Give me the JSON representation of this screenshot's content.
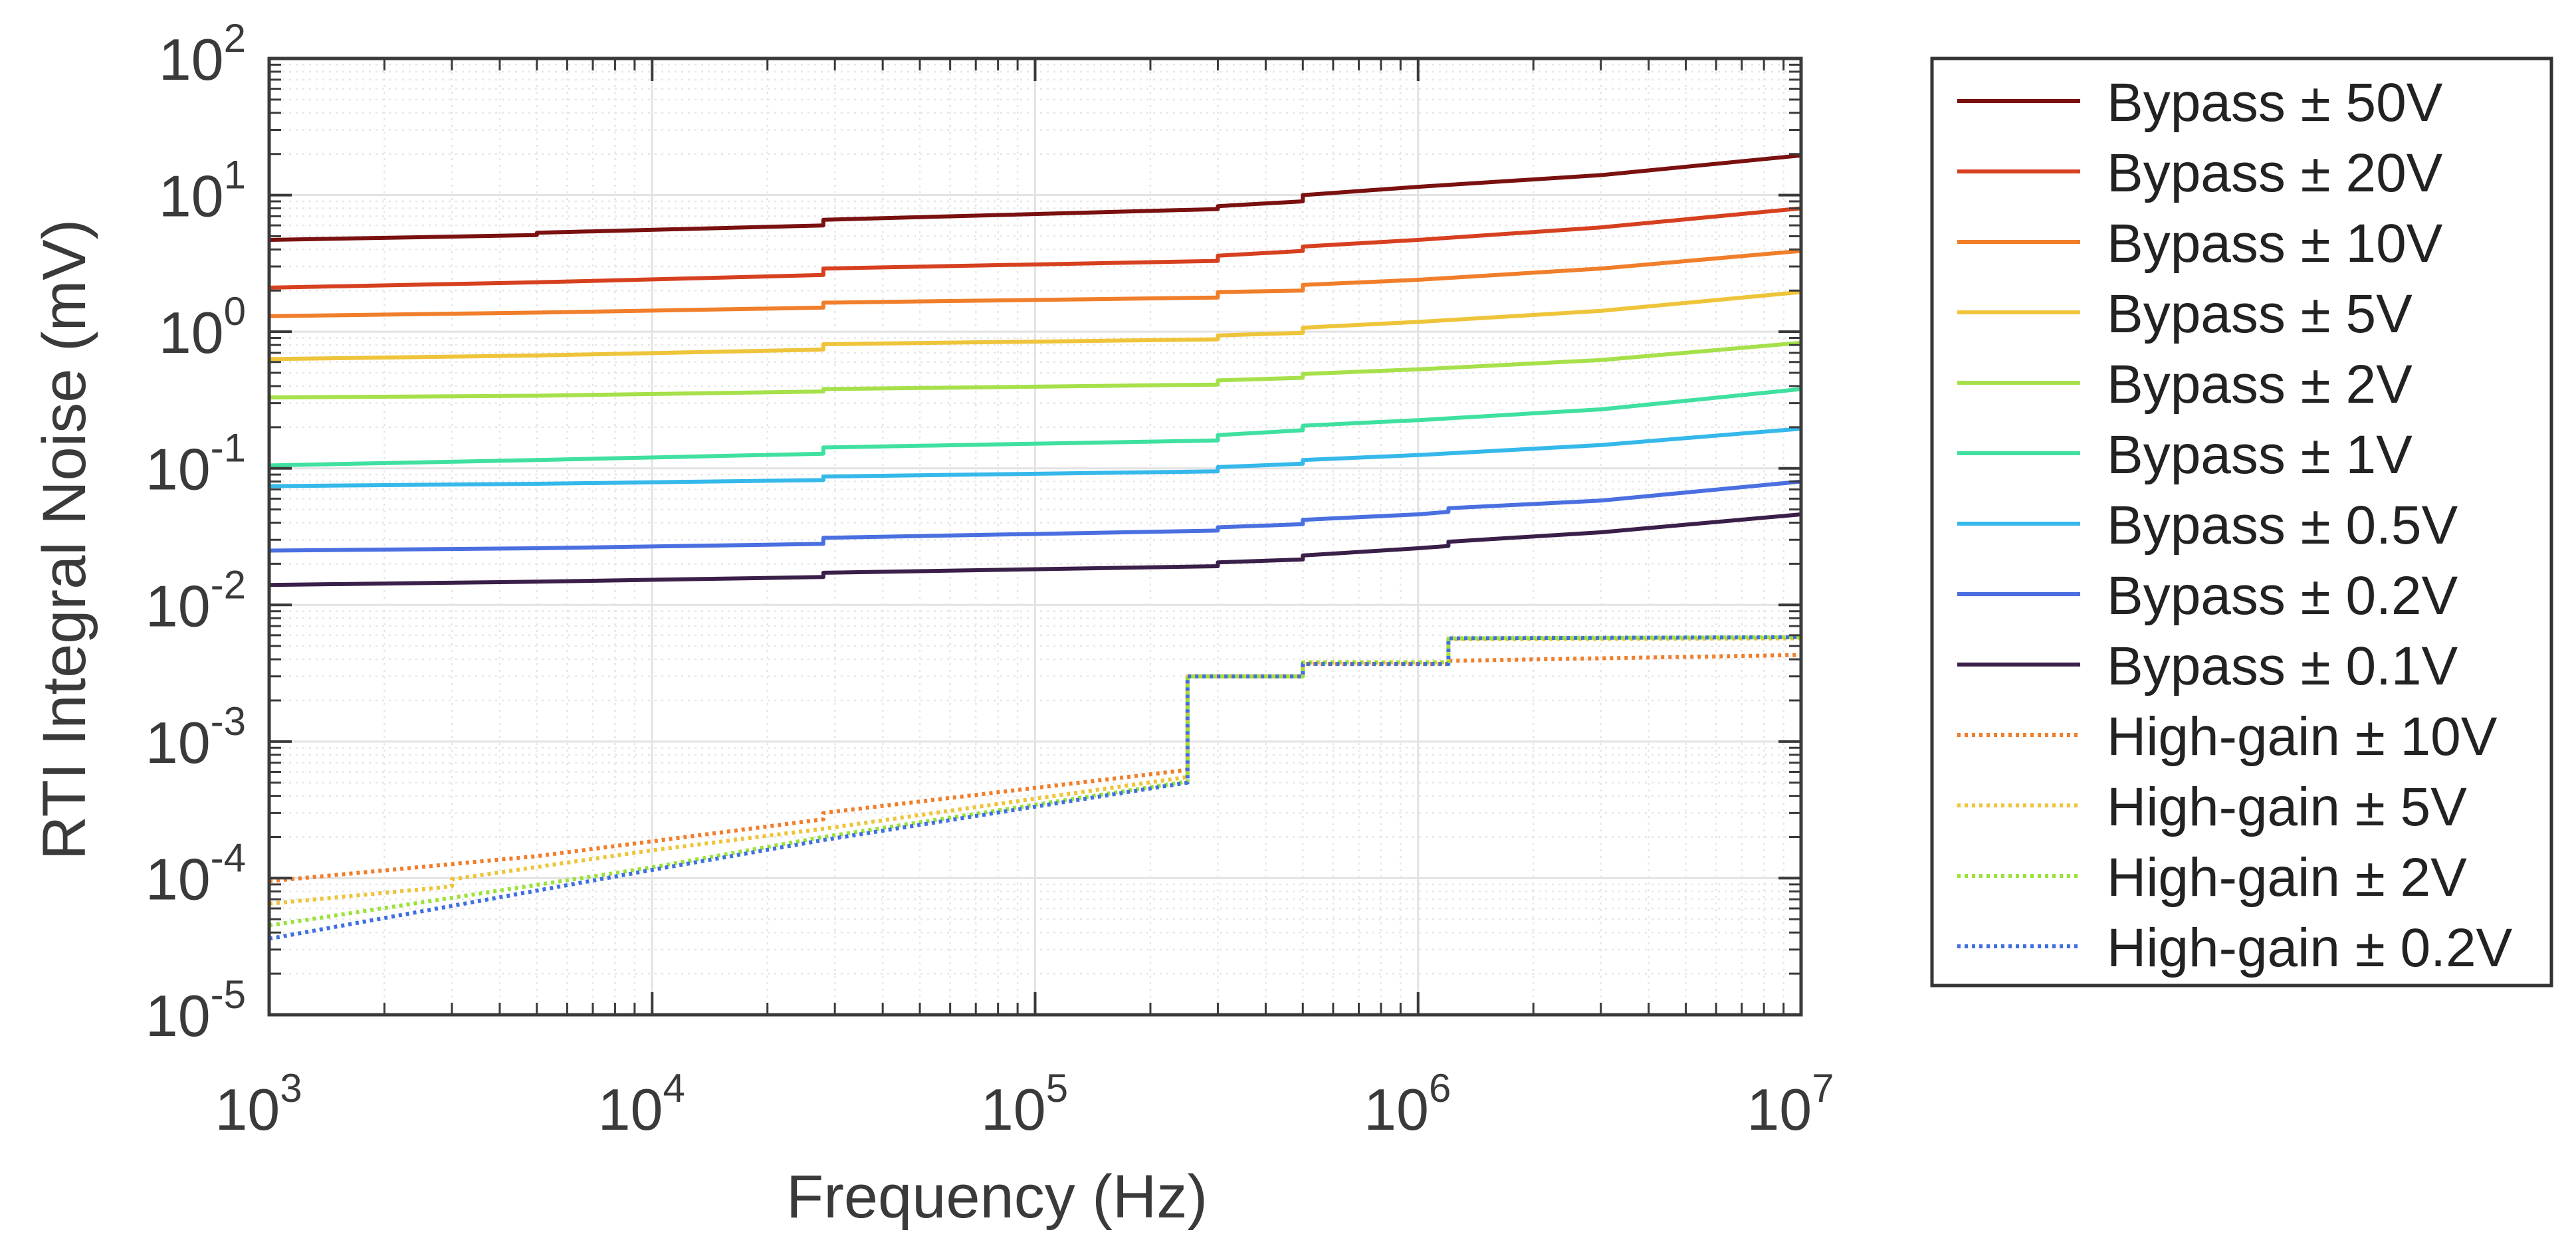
{
  "chart_data": {
    "type": "line",
    "xscale": "log",
    "yscale": "log",
    "xlabel": "Frequency (Hz)",
    "ylabel": "RTI Integral Noise (mV)",
    "xlim": [
      1000,
      10000000
    ],
    "ylim": [
      1e-05,
      100
    ],
    "grid": true,
    "legend_position": "outside-right",
    "x_ticks": [
      {
        "value": 1000,
        "base": "10",
        "exp": "3"
      },
      {
        "value": 10000,
        "base": "10",
        "exp": "4"
      },
      {
        "value": 100000,
        "base": "10",
        "exp": "5"
      },
      {
        "value": 1000000,
        "base": "10",
        "exp": "6"
      },
      {
        "value": 10000000,
        "base": "10",
        "exp": "7"
      }
    ],
    "y_ticks": [
      {
        "value": 100,
        "base": "10",
        "exp": "2"
      },
      {
        "value": 10,
        "base": "10",
        "exp": "1"
      },
      {
        "value": 1,
        "base": "10",
        "exp": "0"
      },
      {
        "value": 0.1,
        "base": "10",
        "exp": "-1"
      },
      {
        "value": 0.01,
        "base": "10",
        "exp": "-2"
      },
      {
        "value": 0.001,
        "base": "10",
        "exp": "-3"
      },
      {
        "value": 0.0001,
        "base": "10",
        "exp": "-4"
      },
      {
        "value": 1e-05,
        "base": "10",
        "exp": "-5"
      }
    ],
    "series": [
      {
        "name": "Bypass ± 50V",
        "color": "#7a1010",
        "style": "solid",
        "x": [
          1000,
          5000,
          5000,
          28000,
          28000,
          300000,
          300000,
          500000,
          500000,
          1000000,
          3000000,
          10000000
        ],
        "y": [
          4.7,
          5.1,
          5.3,
          6.0,
          6.6,
          7.9,
          8.3,
          9.0,
          10.0,
          11.5,
          14.0,
          19.5
        ]
      },
      {
        "name": "Bypass ± 20V",
        "color": "#d6401f",
        "style": "solid",
        "x": [
          1000,
          5000,
          28000,
          28000,
          300000,
          300000,
          500000,
          500000,
          1000000,
          3000000,
          10000000
        ],
        "y": [
          2.1,
          2.3,
          2.6,
          2.9,
          3.3,
          3.6,
          3.9,
          4.2,
          4.7,
          5.8,
          8.0
        ]
      },
      {
        "name": "Bypass ± 10V",
        "color": "#f07e2a",
        "style": "solid",
        "x": [
          1000,
          5000,
          28000,
          28000,
          300000,
          300000,
          500000,
          500000,
          1000000,
          3000000,
          10000000
        ],
        "y": [
          1.3,
          1.38,
          1.5,
          1.63,
          1.78,
          1.95,
          2.0,
          2.2,
          2.4,
          2.9,
          3.9
        ]
      },
      {
        "name": "Bypass ± 5V",
        "color": "#eec43a",
        "style": "solid",
        "x": [
          1000,
          5000,
          28000,
          28000,
          300000,
          300000,
          500000,
          500000,
          1000000,
          3000000,
          10000000
        ],
        "y": [
          0.63,
          0.67,
          0.74,
          0.81,
          0.88,
          0.94,
          0.98,
          1.07,
          1.18,
          1.42,
          1.95
        ]
      },
      {
        "name": "Bypass ± 2V",
        "color": "#a6e04a",
        "style": "solid",
        "x": [
          1000,
          5000,
          28000,
          28000,
          300000,
          300000,
          500000,
          500000,
          1000000,
          3000000,
          10000000
        ],
        "y": [
          0.33,
          0.34,
          0.365,
          0.38,
          0.41,
          0.44,
          0.46,
          0.49,
          0.53,
          0.62,
          0.83
        ]
      },
      {
        "name": "Bypass ± 1V",
        "color": "#3fe0a0",
        "style": "solid",
        "x": [
          1000,
          5000,
          28000,
          28000,
          300000,
          300000,
          500000,
          500000,
          1000000,
          3000000,
          10000000
        ],
        "y": [
          0.105,
          0.115,
          0.128,
          0.142,
          0.16,
          0.175,
          0.19,
          0.205,
          0.225,
          0.27,
          0.38
        ]
      },
      {
        "name": "Bypass ± 0.5V",
        "color": "#35b8ea",
        "style": "solid",
        "x": [
          1000,
          5000,
          28000,
          28000,
          300000,
          300000,
          500000,
          500000,
          1000000,
          3000000,
          10000000
        ],
        "y": [
          0.074,
          0.077,
          0.082,
          0.087,
          0.095,
          0.102,
          0.108,
          0.115,
          0.125,
          0.148,
          0.195
        ]
      },
      {
        "name": "Bypass ± 0.2V",
        "color": "#4a6fe0",
        "style": "solid",
        "x": [
          1000,
          5000,
          28000,
          28000,
          300000,
          300000,
          500000,
          500000,
          1000000,
          1200000,
          1200000,
          3000000,
          10000000
        ],
        "y": [
          0.025,
          0.026,
          0.028,
          0.031,
          0.035,
          0.037,
          0.039,
          0.042,
          0.046,
          0.048,
          0.051,
          0.058,
          0.08
        ]
      },
      {
        "name": "Bypass ± 0.1V",
        "color": "#3a1f48",
        "style": "solid",
        "x": [
          1000,
          5000,
          28000,
          28000,
          300000,
          300000,
          500000,
          500000,
          1000000,
          1200000,
          1200000,
          3000000,
          10000000
        ],
        "y": [
          0.014,
          0.0148,
          0.016,
          0.0172,
          0.0192,
          0.0205,
          0.0215,
          0.023,
          0.026,
          0.027,
          0.029,
          0.034,
          0.046
        ]
      },
      {
        "name": "High-gain ± 10V",
        "color": "#f07e2a",
        "style": "dotted",
        "x": [
          1000,
          5000,
          28000,
          28000,
          250000,
          250000,
          500000,
          500000,
          1200000,
          1200000,
          10000000
        ],
        "y": [
          9.5e-05,
          0.000145,
          0.00027,
          0.0003,
          0.00062,
          0.003,
          0.003,
          0.0037,
          0.0037,
          0.0039,
          0.0043
        ]
      },
      {
        "name": "High-gain ± 5V",
        "color": "#eec43a",
        "style": "dotted",
        "x": [
          1000,
          3000,
          3000,
          10000,
          28000,
          250000,
          250000,
          500000,
          500000,
          1200000,
          1200000,
          10000000
        ],
        "y": [
          6.5e-05,
          8.7e-05,
          9.8e-05,
          0.00016,
          0.00023,
          0.00055,
          0.003,
          0.003,
          0.0038,
          0.0038,
          0.0056,
          0.0057
        ]
      },
      {
        "name": "High-gain ± 2V",
        "color": "#9be23a",
        "style": "dotted",
        "x": [
          1000,
          10000,
          28000,
          250000,
          250000,
          500000,
          500000,
          1200000,
          1200000,
          10000000
        ],
        "y": [
          4.5e-05,
          0.00012,
          0.0002,
          0.00051,
          0.003,
          0.003,
          0.0038,
          0.0038,
          0.0057,
          0.0058
        ]
      },
      {
        "name": "High-gain ± 0.2V",
        "color": "#3f6fe0",
        "style": "dotted",
        "x": [
          1000,
          10000,
          28000,
          250000,
          250000,
          500000,
          500000,
          1200000,
          1200000,
          10000000
        ],
        "y": [
          3.6e-05,
          0.000115,
          0.00019,
          0.0005,
          0.003,
          0.003,
          0.0037,
          0.0037,
          0.0057,
          0.0058
        ]
      }
    ]
  }
}
